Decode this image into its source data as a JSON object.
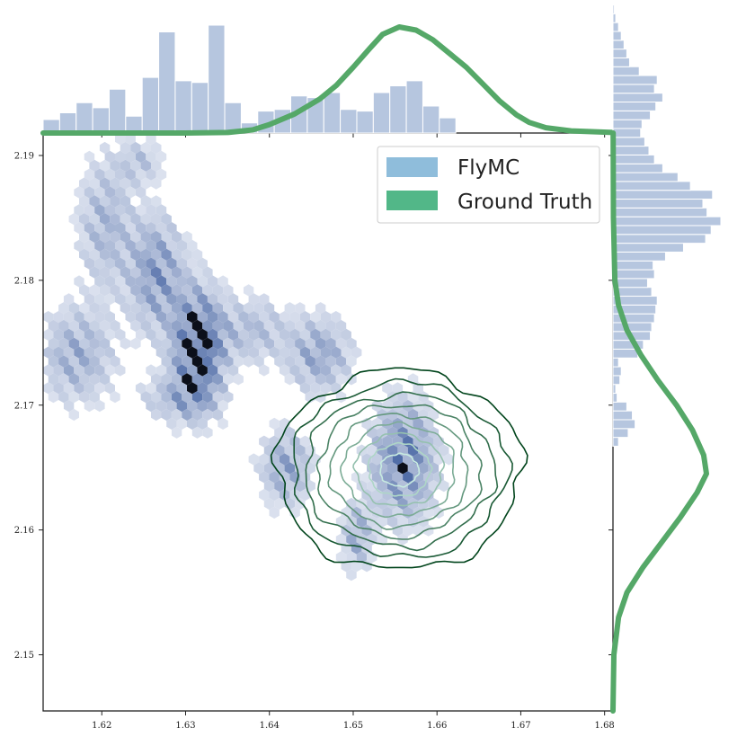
{
  "chart_data": {
    "type": "hexbin-joint",
    "xlim": [
      1.613,
      1.681
    ],
    "ylim": [
      2.1455,
      2.1918
    ],
    "x_ticks": [
      "1.62",
      "1.63",
      "1.64",
      "1.65",
      "1.66",
      "1.67",
      "1.68"
    ],
    "x_tick_values": [
      1.62,
      1.63,
      1.64,
      1.65,
      1.66,
      1.67,
      1.68
    ],
    "y_ticks": [
      "2.15",
      "2.16",
      "2.17",
      "2.18",
      "2.19"
    ],
    "y_tick_values": [
      2.15,
      2.16,
      2.17,
      2.18,
      2.19
    ],
    "grid": false,
    "legend": {
      "position": "top-right",
      "entries": [
        {
          "label": "FlyMC",
          "color": "#8fbddb"
        },
        {
          "label": "Ground Truth",
          "color": "#52b788"
        }
      ]
    },
    "colors": {
      "hex_dark": "#3a5a9c",
      "hex_light": "#eef1f8",
      "marginal_bar": "#b6c6df",
      "kde_line": "#55a868",
      "contour_outer": "#00441b",
      "contour_inner": "#c7ebe0"
    },
    "hex_clusters": [
      {
        "x": 1.6205,
        "y": 2.1845,
        "sx": 0.0022,
        "sy": 0.0035,
        "w": 0.35
      },
      {
        "x": 1.6245,
        "y": 2.1895,
        "sx": 0.0018,
        "sy": 0.0012,
        "w": 0.25
      },
      {
        "x": 1.6265,
        "y": 2.1805,
        "sx": 0.0022,
        "sy": 0.003,
        "w": 0.55
      },
      {
        "x": 1.6315,
        "y": 2.1745,
        "sx": 0.002,
        "sy": 0.003,
        "w": 1.0
      },
      {
        "x": 1.617,
        "y": 2.174,
        "sx": 0.003,
        "sy": 0.0025,
        "w": 0.4
      },
      {
        "x": 1.629,
        "y": 2.1705,
        "sx": 0.003,
        "sy": 0.0012,
        "w": 0.3
      },
      {
        "x": 1.638,
        "y": 2.176,
        "sx": 0.003,
        "sy": 0.0018,
        "w": 0.3
      },
      {
        "x": 1.646,
        "y": 2.174,
        "sx": 0.0025,
        "sy": 0.002,
        "w": 0.45
      },
      {
        "x": 1.642,
        "y": 2.165,
        "sx": 0.002,
        "sy": 0.002,
        "w": 0.45
      },
      {
        "x": 1.656,
        "y": 2.1655,
        "sx": 0.0025,
        "sy": 0.003,
        "w": 0.7
      },
      {
        "x": 1.6505,
        "y": 2.1595,
        "sx": 0.0012,
        "sy": 0.0018,
        "w": 0.4
      }
    ],
    "contour_center": [
      1.6555,
      2.1648
    ],
    "contour_radii": [
      [
        0.0146,
        0.008
      ],
      [
        0.0128,
        0.007
      ],
      [
        0.0113,
        0.0061
      ],
      [
        0.0097,
        0.0053
      ],
      [
        0.0082,
        0.0045
      ],
      [
        0.0067,
        0.0037
      ],
      [
        0.0052,
        0.0029
      ],
      [
        0.0037,
        0.0021
      ],
      [
        0.0023,
        0.0013
      ]
    ],
    "x_marginal_hist": {
      "bin_start": 1.613,
      "bin_width": 0.00197,
      "values": [
        8,
        12,
        18,
        15,
        26,
        10,
        33,
        60,
        31,
        30,
        64,
        18,
        6,
        13,
        14,
        22,
        21,
        24,
        14,
        13,
        24,
        28,
        31,
        16,
        9
      ]
    },
    "x_kde": {
      "x": [
        1.613,
        1.63,
        1.635,
        1.638,
        1.64,
        1.643,
        1.646,
        1.648,
        1.65,
        1.652,
        1.6535,
        1.6555,
        1.6575,
        1.6595,
        1.6615,
        1.6635,
        1.6655,
        1.6675,
        1.6695,
        1.671,
        1.673,
        1.676,
        1.681
      ],
      "y": [
        0,
        0,
        0.005,
        0.03,
        0.08,
        0.18,
        0.32,
        0.45,
        0.62,
        0.8,
        0.93,
        1.0,
        0.97,
        0.88,
        0.75,
        0.62,
        0.46,
        0.3,
        0.17,
        0.1,
        0.05,
        0.02,
        0.005
      ]
    },
    "y_marginal_hist": {
      "bin_start": 2.1455,
      "bin_width": 0.000707,
      "values": [
        0,
        0,
        0,
        0,
        0,
        0,
        0,
        0,
        0,
        0,
        0,
        0,
        0,
        0,
        0,
        0,
        0,
        0,
        0,
        0,
        0,
        0,
        0,
        0,
        0,
        0,
        0,
        0,
        0,
        0,
        4,
        11,
        16,
        14,
        10,
        3,
        2,
        5,
        6,
        4,
        18,
        22,
        27,
        28,
        30,
        31,
        32,
        28,
        25,
        30,
        29,
        38,
        51,
        67,
        71,
        78,
        68,
        65,
        72,
        56,
        47,
        36,
        30,
        26,
        23,
        20,
        21,
        27,
        31,
        36,
        30,
        32,
        19,
        12,
        10,
        8,
        6,
        4,
        2,
        1
      ]
    },
    "y_kde": {
      "y": [
        2.1455,
        2.15,
        2.153,
        2.155,
        2.157,
        2.159,
        2.161,
        2.163,
        2.1645,
        2.166,
        2.168,
        2.17,
        2.172,
        2.174,
        2.176,
        2.178,
        2.18,
        2.185,
        2.1918
      ],
      "x": [
        0.0,
        0.01,
        0.06,
        0.15,
        0.32,
        0.52,
        0.72,
        0.9,
        1.0,
        0.97,
        0.85,
        0.68,
        0.48,
        0.3,
        0.15,
        0.06,
        0.02,
        0.005,
        0.002
      ]
    }
  }
}
